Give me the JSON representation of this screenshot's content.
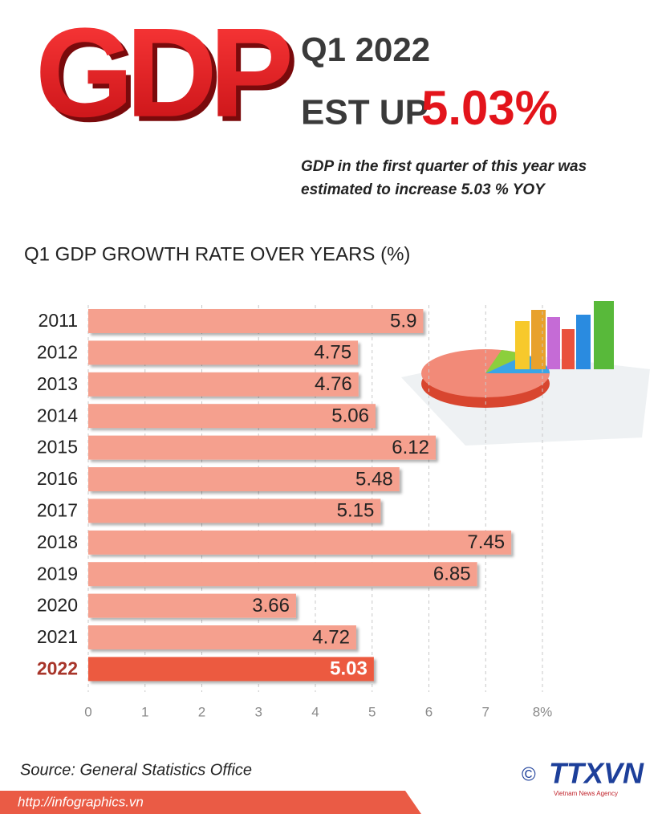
{
  "header": {
    "logo": "GDP",
    "line1": "Q1 2022",
    "line2": "EST UP",
    "highlight": "5.03%",
    "description": "GDP in the first quarter of this year was estimated to increase 5.03 % YOY"
  },
  "chart_data": {
    "type": "hbar",
    "title": "Q1 GDP GROWTH RATE OVER YEARS (%)",
    "categories": [
      "2011",
      "2012",
      "2013",
      "2014",
      "2015",
      "2016",
      "2017",
      "2018",
      "2019",
      "2020",
      "2021",
      "2022"
    ],
    "values": [
      5.9,
      4.75,
      4.76,
      5.06,
      6.12,
      5.48,
      5.15,
      7.45,
      6.85,
      3.66,
      4.72,
      5.03
    ],
    "colors": [
      "#f5a08e",
      "#f5a08e",
      "#f5a08e",
      "#f5a08e",
      "#f5a08e",
      "#f5a08e",
      "#f5a08e",
      "#f5a08e",
      "#f5a08e",
      "#f5a08e",
      "#f5a08e",
      "#ec5a3f"
    ],
    "category_colors": [
      "#222222",
      "#222222",
      "#222222",
      "#222222",
      "#222222",
      "#222222",
      "#222222",
      "#222222",
      "#222222",
      "#222222",
      "#222222",
      "#a8352a"
    ],
    "value_label_colors": [
      "#222222",
      "#222222",
      "#222222",
      "#222222",
      "#222222",
      "#222222",
      "#222222",
      "#222222",
      "#222222",
      "#222222",
      "#222222",
      "#ffffff"
    ],
    "xlim": [
      0,
      8
    ],
    "xticks": [
      0,
      1,
      2,
      3,
      4,
      5,
      6,
      7,
      {
        "value": 8,
        "label": "8%"
      }
    ],
    "grid": true
  },
  "footer": {
    "source": "Source: General Statistics Office",
    "url": "http://infographics.vn",
    "copyright": "©",
    "brand": "TTXVN",
    "brand_sub": "Vietnam News Agency"
  }
}
